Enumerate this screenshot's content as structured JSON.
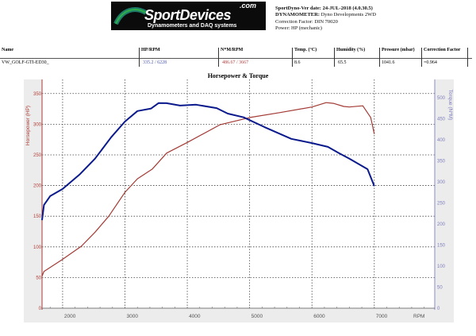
{
  "header": {
    "logo_text": "SportDevices",
    "logo_com": ".com",
    "logo_sub": "Dynamometers and DAQ systems",
    "ver_label": "SportDyno-Ver date:",
    "ver_value": "24-JUL-2018 (4.0.30.5)",
    "dyno_label": "DYNAMOMETER:",
    "dyno_value": "Dyno Developments 2WD",
    "correction": "Correction Factor: DIN 70020",
    "power": "Power: HP (mechanic)"
  },
  "table": {
    "headers": [
      "Name",
      "HP/RPM",
      "N*M/RPM",
      "Temp. (°C)",
      "Humidity (%)",
      "Pressure (mbar)",
      "Correction Factor"
    ],
    "row": [
      "VW_GOLF-GTI-ED30_",
      "335.2 / 6228",
      "486.67 / 3667",
      "8.6",
      "65.5",
      "1041.6",
      "=0.964"
    ]
  },
  "colors": {
    "hp": "#a33a34",
    "torque": "#0a1a8c",
    "hp_axis": "#b0403a",
    "torque_axis": "#7e7ec0",
    "panel": "#ececec"
  },
  "chart_data": {
    "type": "line",
    "title": "Horsepower & Torque",
    "xlabel": "RPM",
    "ylabel_left": "Horsepower (HP)",
    "ylabel_right": "Torque (N*M)",
    "xlim": [
      1670,
      7970
    ],
    "ylim_left": [
      0,
      373
    ],
    "ylim_right": [
      0,
      543
    ],
    "xticks": [
      2000,
      3000,
      4000,
      5000,
      6000,
      7000
    ],
    "yticks_left": [
      0,
      50,
      100,
      150,
      200,
      250,
      300,
      350
    ],
    "yticks_right": [
      0,
      50,
      100,
      150,
      200,
      250,
      300,
      350,
      400,
      450,
      500
    ],
    "grid": true,
    "series": [
      {
        "name": "Horsepower (HP)",
        "axis": "left",
        "x": [
          1670,
          1700,
          1990,
          2300,
          2520,
          2740,
          3000,
          3200,
          3440,
          3669,
          4013,
          4522,
          5006,
          5490,
          6000,
          6228,
          6344,
          6510,
          6599,
          6815,
          6943,
          7000
        ],
        "y": [
          52,
          60,
          79,
          101,
          124,
          150,
          189,
          211,
          227,
          253,
          271,
          299,
          311,
          319,
          328,
          335.2,
          334,
          329,
          328,
          330,
          311,
          284
        ]
      },
      {
        "name": "Torque (N*M)",
        "axis": "right",
        "x": [
          1670,
          1700,
          1800,
          2000,
          2270,
          2520,
          2780,
          3000,
          3200,
          3420,
          3541,
          3667,
          3885,
          4140,
          4471,
          4650,
          4904,
          5236,
          5669,
          6000,
          6255,
          6433,
          6600,
          6892,
          7000
        ],
        "y": [
          209,
          245,
          266,
          283,
          317,
          355,
          406,
          443,
          468,
          474,
          487,
          486.67,
          481,
          483,
          475,
          462,
          453,
          430,
          402,
          392,
          383,
          368,
          355,
          330,
          290
        ]
      }
    ]
  }
}
